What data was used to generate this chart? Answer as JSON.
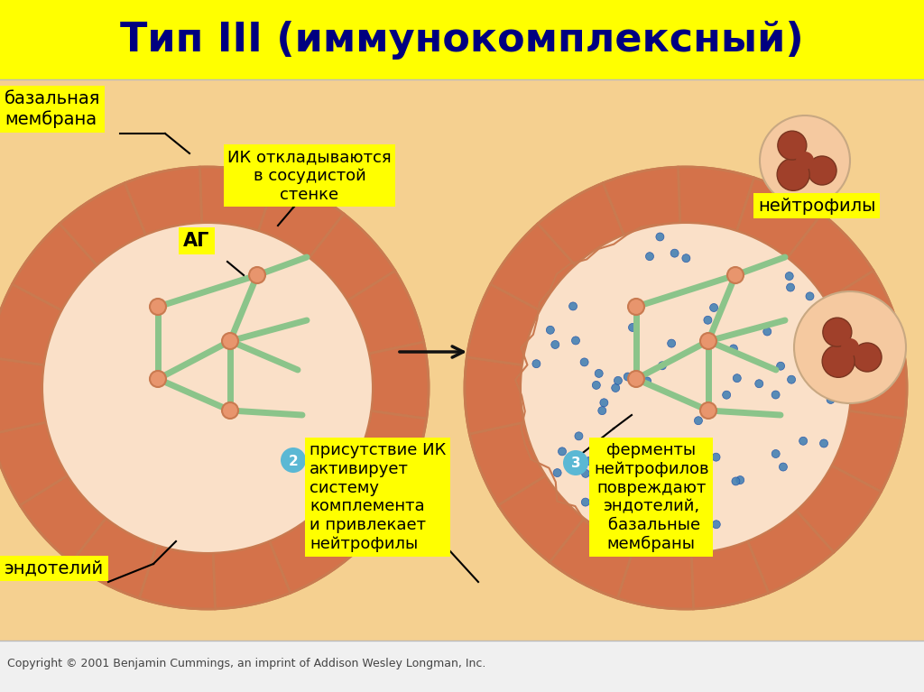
{
  "title": "Тип III (иммунокомплексный)",
  "title_color": "#000080",
  "title_bg": "#FFFF00",
  "background_color": "#F5D090",
  "main_bg": "#FFFF00",
  "copyright": "Copyright © 2001 Benjamin Cummings, an imprint of Addison Wesley Longman, Inc.",
  "labels": {
    "bazalnaya": "базальная\nмембрана",
    "endoteliy": "эндотелий",
    "ag": "АГ",
    "ik1": "ИК откладываются\nв сосудистой\nстенке",
    "ik2": "присутствие ИК\nактивирует\nсистему\nкомплемента\nи привлекает\nнейтрофилы",
    "ik3": "ферменты\nнейтрофилов\nповреждают\nэндотелий,\n базальные\nмембраны",
    "neytrofily": "нейтрофилы"
  },
  "outer_ring_color": "#E8956D",
  "outer_ring_border": "#C97A50",
  "brick_color": "#D4724A",
  "inner_color": "#F5C9A0",
  "lumen_color": "#FAE0C8",
  "green_color": "#8BC48A",
  "node_color": "#E8956D",
  "node_border": "#C97A50",
  "blue_circle_color": "#5BB8D4",
  "dot_color": "#4682B4",
  "neutrophil_bg": "#F5C9A0",
  "neutrophil_nucleus": "#A0522D",
  "neutrophil_border": "#8B6347",
  "label_bg": "#FFFF00",
  "arrow_color": "#111111"
}
